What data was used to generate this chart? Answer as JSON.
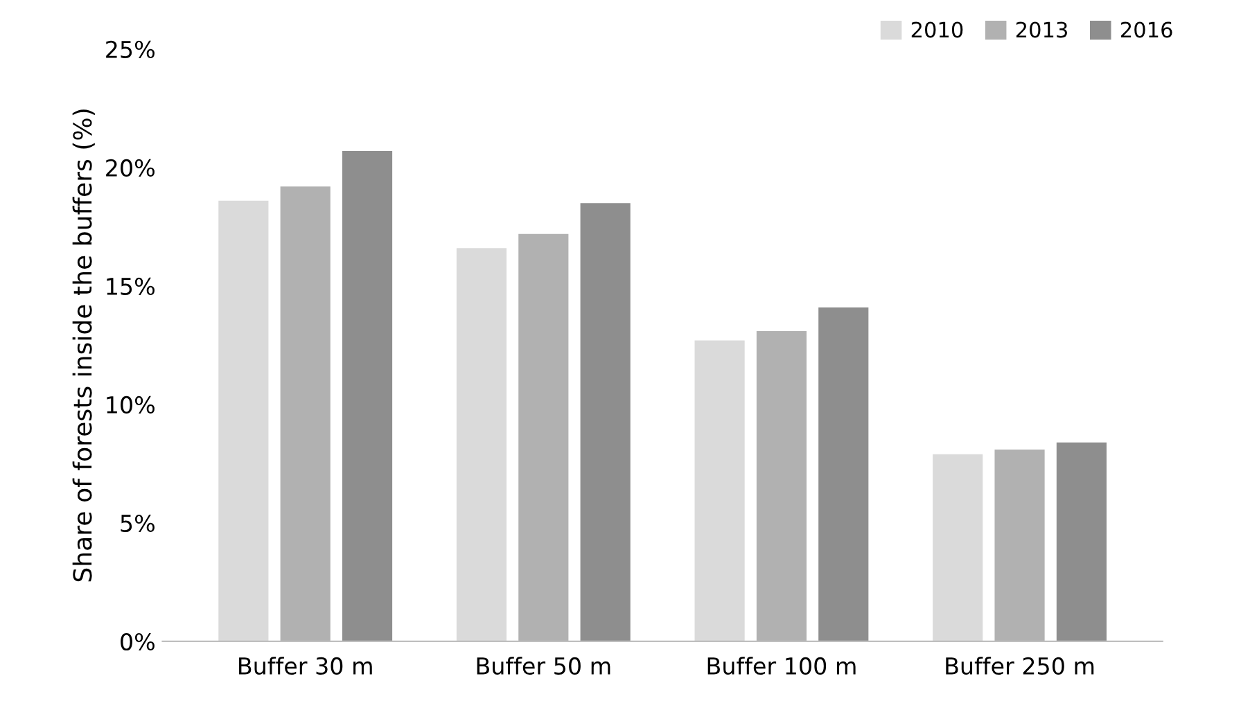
{
  "chart_data": {
    "type": "bar",
    "ylabel": "Share of forests inside the buffers (%)",
    "categories": [
      "Buffer 30 m",
      "Buffer 50 m",
      "Buffer 100 m",
      "Buffer 250 m"
    ],
    "series": [
      {
        "name": "2010",
        "color": "#dadada",
        "values": [
          18.6,
          16.6,
          12.7,
          7.9
        ]
      },
      {
        "name": "2013",
        "color": "#b1b1b1",
        "values": [
          19.2,
          17.2,
          13.1,
          8.1
        ]
      },
      {
        "name": "2016",
        "color": "#8e8e8e",
        "values": [
          20.7,
          18.5,
          14.1,
          8.4
        ]
      }
    ],
    "ylim": [
      0,
      25
    ],
    "yticks": [
      {
        "value": 0,
        "label": "0%"
      },
      {
        "value": 5,
        "label": "5%"
      },
      {
        "value": 10,
        "label": "10%"
      },
      {
        "value": 15,
        "label": "15%"
      },
      {
        "value": 20,
        "label": "20%"
      },
      {
        "value": 25,
        "label": "25%"
      }
    ],
    "grid": false,
    "legend": "top right"
  }
}
